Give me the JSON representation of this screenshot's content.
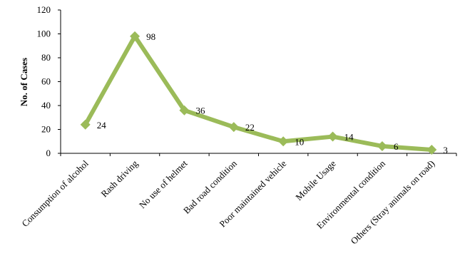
{
  "chart_data": {
    "type": "line",
    "categories": [
      "Consumption of alcohol",
      "Rash driving",
      "No use of helmet",
      "Bad road condition",
      "Poor maintained vehicle",
      "Mobile Usage",
      "Environmental condition",
      "Others (Stray animals on road)"
    ],
    "series": [
      {
        "values": [
          24,
          98,
          36,
          22,
          10,
          14,
          6,
          3
        ],
        "color": "#9bbb59"
      }
    ],
    "data_labels": [
      "24",
      "98",
      "36",
      "22",
      "10",
      "14",
      "6",
      "3"
    ],
    "ylabel": "No. of Cases",
    "ylim": [
      0,
      120
    ],
    "yticks": [
      0,
      20,
      40,
      60,
      80,
      100,
      120
    ],
    "ytick_labels": [
      "0",
      "20",
      "40",
      "60",
      "80",
      "100",
      "120"
    ],
    "grid": false,
    "legend": "none",
    "marker": "diamond"
  }
}
